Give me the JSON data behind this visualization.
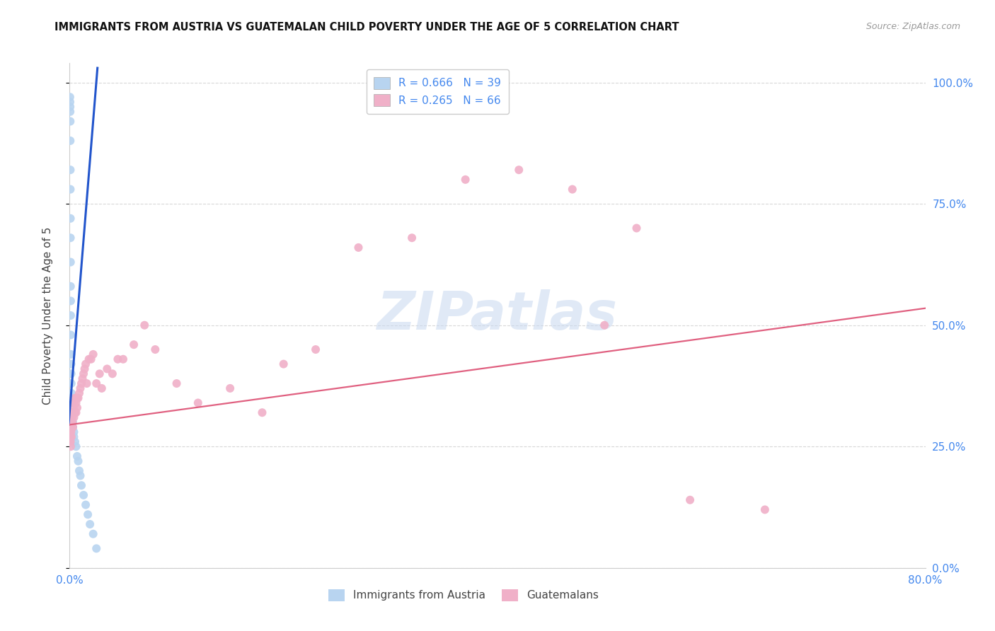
{
  "title": "IMMIGRANTS FROM AUSTRIA VS GUATEMALAN CHILD POVERTY UNDER THE AGE OF 5 CORRELATION CHART",
  "source": "Source: ZipAtlas.com",
  "ylabel": "Child Poverty Under the Age of 5",
  "watermark": "ZIPatlas",
  "legend_entries": [
    {
      "label": "R = 0.666   N = 39",
      "color": "#b8d4f0"
    },
    {
      "label": "R = 0.265   N = 66",
      "color": "#f0b0c8"
    }
  ],
  "legend_footer": [
    "Immigrants from Austria",
    "Guatemalans"
  ],
  "blue_scatter_x": [
    0.0003,
    0.0004,
    0.0005,
    0.0005,
    0.0006,
    0.0006,
    0.0007,
    0.0007,
    0.0008,
    0.0008,
    0.0009,
    0.0009,
    0.001,
    0.001,
    0.001,
    0.0012,
    0.0013,
    0.0014,
    0.0015,
    0.0016,
    0.002,
    0.002,
    0.003,
    0.003,
    0.004,
    0.004,
    0.005,
    0.006,
    0.007,
    0.008,
    0.009,
    0.01,
    0.011,
    0.013,
    0.015,
    0.017,
    0.019,
    0.022,
    0.025
  ],
  "blue_scatter_y": [
    0.97,
    0.96,
    0.95,
    0.94,
    0.92,
    0.88,
    0.82,
    0.78,
    0.72,
    0.68,
    0.63,
    0.58,
    0.55,
    0.52,
    0.48,
    0.44,
    0.42,
    0.4,
    0.38,
    0.36,
    0.34,
    0.32,
    0.3,
    0.29,
    0.28,
    0.27,
    0.26,
    0.25,
    0.23,
    0.22,
    0.2,
    0.19,
    0.17,
    0.15,
    0.13,
    0.11,
    0.09,
    0.07,
    0.04
  ],
  "pink_scatter_x": [
    0.0003,
    0.0004,
    0.0005,
    0.0006,
    0.0007,
    0.0008,
    0.0009,
    0.001,
    0.001,
    0.0012,
    0.0013,
    0.0015,
    0.0016,
    0.0018,
    0.002,
    0.002,
    0.0022,
    0.0025,
    0.003,
    0.003,
    0.0035,
    0.004,
    0.004,
    0.005,
    0.005,
    0.006,
    0.006,
    0.007,
    0.007,
    0.008,
    0.009,
    0.01,
    0.011,
    0.012,
    0.013,
    0.014,
    0.015,
    0.016,
    0.018,
    0.02,
    0.022,
    0.025,
    0.028,
    0.03,
    0.035,
    0.04,
    0.045,
    0.05,
    0.06,
    0.07,
    0.08,
    0.1,
    0.12,
    0.15,
    0.18,
    0.2,
    0.23,
    0.27,
    0.32,
    0.37,
    0.42,
    0.47,
    0.5,
    0.53,
    0.58,
    0.65
  ],
  "pink_scatter_y": [
    0.28,
    0.27,
    0.26,
    0.27,
    0.28,
    0.26,
    0.27,
    0.28,
    0.25,
    0.27,
    0.28,
    0.3,
    0.27,
    0.29,
    0.32,
    0.29,
    0.31,
    0.3,
    0.32,
    0.29,
    0.33,
    0.34,
    0.31,
    0.35,
    0.32,
    0.34,
    0.32,
    0.35,
    0.33,
    0.35,
    0.36,
    0.37,
    0.38,
    0.39,
    0.4,
    0.41,
    0.42,
    0.38,
    0.43,
    0.43,
    0.44,
    0.38,
    0.4,
    0.37,
    0.41,
    0.4,
    0.43,
    0.43,
    0.46,
    0.5,
    0.45,
    0.38,
    0.34,
    0.37,
    0.32,
    0.42,
    0.45,
    0.66,
    0.68,
    0.8,
    0.82,
    0.78,
    0.5,
    0.7,
    0.14,
    0.12
  ],
  "blue_line_x": [
    -0.001,
    0.026
  ],
  "blue_line_y": [
    0.295,
    1.03
  ],
  "pink_line_x": [
    0.0,
    0.8
  ],
  "pink_line_y": [
    0.295,
    0.535
  ],
  "scatter_size": 75,
  "blue_scatter_color": "#b8d4f0",
  "pink_scatter_color": "#f0b0c8",
  "blue_line_color": "#2255cc",
  "pink_line_color": "#e06080",
  "background_color": "#ffffff",
  "grid_color": "#d8d8d8",
  "title_color": "#111111",
  "right_axis_color": "#4488ee",
  "xlim": [
    0.0,
    0.8
  ],
  "ylim": [
    0.0,
    1.04
  ],
  "right_yticks": [
    0.0,
    0.25,
    0.5,
    0.75,
    1.0
  ],
  "right_yticklabels": [
    "0.0%",
    "25.0%",
    "50.0%",
    "75.0%",
    "100.0%"
  ],
  "xtick_positions": [
    0.0,
    0.1,
    0.2,
    0.3,
    0.4,
    0.5,
    0.6,
    0.7,
    0.8
  ],
  "xtick_labels": [
    "0.0%",
    "",
    "",
    "",
    "",
    "",
    "",
    "",
    "80.0%"
  ]
}
